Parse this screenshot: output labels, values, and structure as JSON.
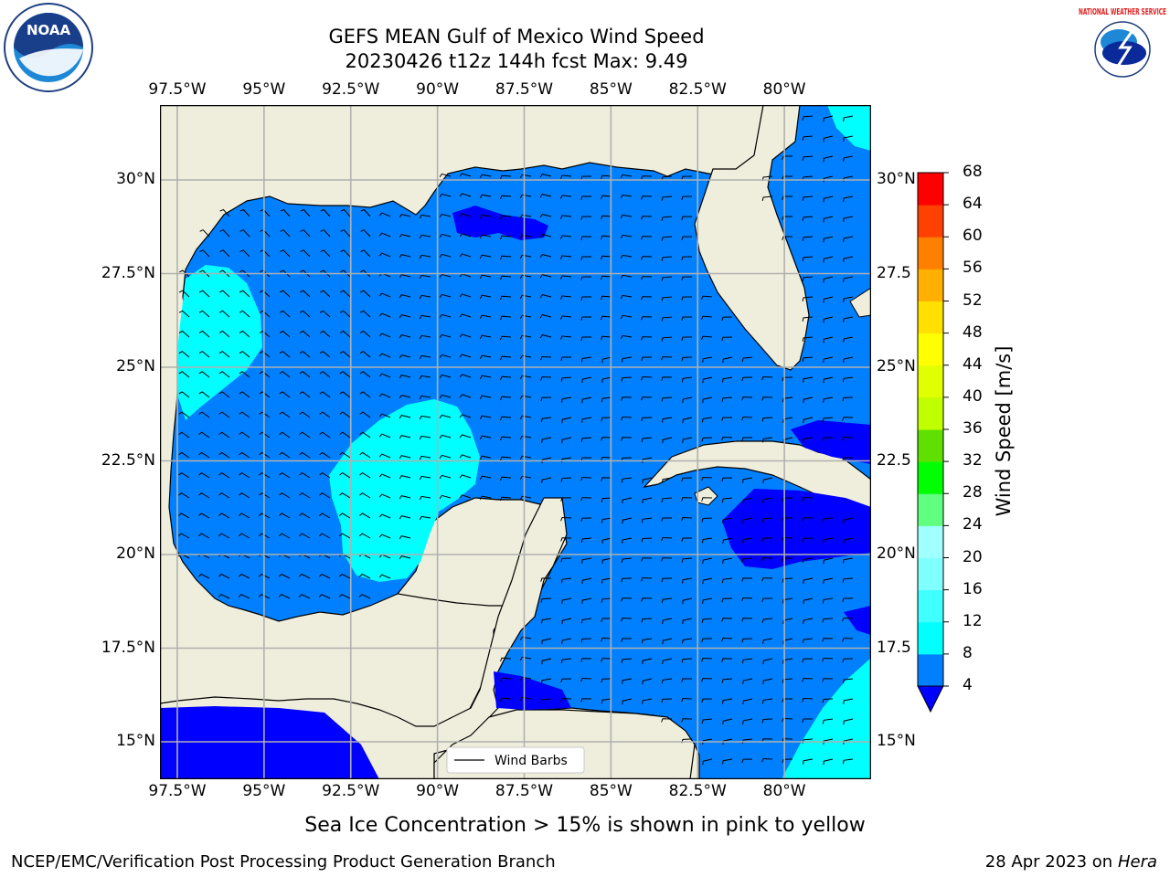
{
  "title": {
    "line1": "GEFS MEAN Gulf of Mexico Wind Speed",
    "line2": "20230426 t12z 144h fcst   Max: 9.49"
  },
  "map": {
    "lon_range": [
      -98,
      -77.5
    ],
    "lat_range": [
      14,
      32
    ],
    "lon_ticks": [
      {
        "value": -97.5,
        "label": "97.5°W"
      },
      {
        "value": -95,
        "label": "95°W"
      },
      {
        "value": -92.5,
        "label": "92.5°W"
      },
      {
        "value": -90,
        "label": "90°W"
      },
      {
        "value": -87.5,
        "label": "87.5°W"
      },
      {
        "value": -85,
        "label": "85°W"
      },
      {
        "value": -82.5,
        "label": "82.5°W"
      },
      {
        "value": -80,
        "label": "80°W"
      }
    ],
    "lat_ticks_left": [
      {
        "value": 30,
        "label": "30°N"
      },
      {
        "value": 27.5,
        "label": "27.5°N"
      },
      {
        "value": 25,
        "label": "25°N"
      },
      {
        "value": 22.5,
        "label": "22.5°N"
      },
      {
        "value": 20,
        "label": "20°N"
      },
      {
        "value": 17.5,
        "label": "17.5°N"
      },
      {
        "value": 15,
        "label": "15°N"
      }
    ],
    "lat_ticks_right": [
      {
        "value": 30,
        "label": "30°N"
      },
      {
        "value": 27.5,
        "label": "27.5"
      },
      {
        "value": 25,
        "label": "25°N"
      },
      {
        "value": 22.5,
        "label": "22.5"
      },
      {
        "value": 20,
        "label": "20°N"
      },
      {
        "value": 17.5,
        "label": "17.5"
      },
      {
        "value": 15,
        "label": "15°N"
      }
    ],
    "land_color": "#efeedc",
    "grid": true,
    "legend_label": "Wind Barbs",
    "legend_placement": "bottom-center"
  },
  "colorbar": {
    "label": "Wind Speed [m/s]",
    "levels": [
      4,
      8,
      12,
      16,
      20,
      24,
      28,
      32,
      36,
      40,
      44,
      48,
      52,
      56,
      60,
      64,
      68
    ],
    "level_labels": [
      "4",
      "8",
      "12",
      "16",
      "20",
      "24",
      "28",
      "32",
      "36",
      "40",
      "44",
      "48",
      "52",
      "56",
      "60",
      "64",
      "68"
    ],
    "colors": [
      "#0080ff",
      "#00ffff",
      "#40ffff",
      "#80ffff",
      "#a0ffff",
      "#60ff80",
      "#00ff00",
      "#60e000",
      "#c0ff00",
      "#e0ff00",
      "#ffff00",
      "#ffe000",
      "#ffb000",
      "#ff8000",
      "#ff4000",
      "#ff0000"
    ],
    "under_color": "#0000ff"
  },
  "caption": "Sea Ice Concentration > 15% is shown in pink to yellow",
  "footer": {
    "left": "NCEP/EMC/Verification Post Processing Product Generation Branch",
    "right_date": "28 Apr 2023 on ",
    "right_machine": "Hera"
  },
  "logos": {
    "noaa": "NOAA",
    "nws": "NATIONAL WEATHER SERVICE"
  }
}
